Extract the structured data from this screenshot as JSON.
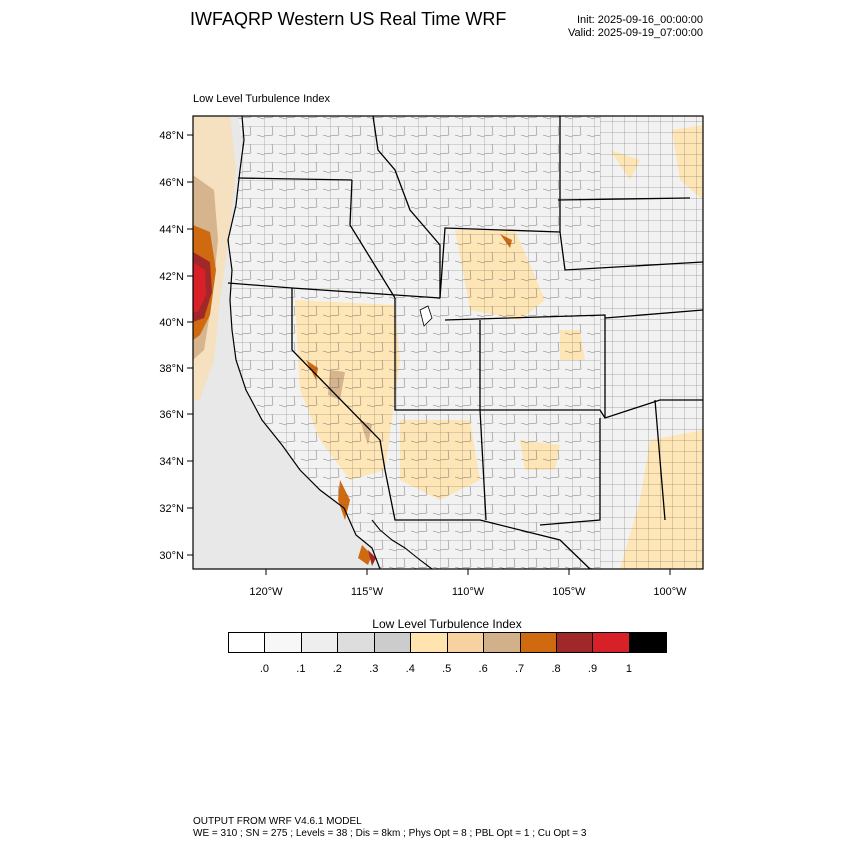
{
  "header": {
    "title": "IWFAQRP Western US Real Time WRF",
    "init": "Init: 2025-09-16_00:00:00",
    "valid": "Valid: 2025-09-19_07:00:00"
  },
  "map": {
    "plot_title": "Low Level Turbulence Index",
    "lat_labels": [
      "48°N",
      "46°N",
      "44°N",
      "42°N",
      "40°N",
      "38°N",
      "36°N",
      "34°N",
      "32°N",
      "30°N"
    ],
    "lon_labels": [
      "120°W",
      "115°W",
      "110°W",
      "105°W",
      "100°W"
    ]
  },
  "colorbar": {
    "title": "Low Level Turbulence Index",
    "colors": [
      "#ffffff",
      "#f7f7f7",
      "#eeeeee",
      "#dddddd",
      "#cccccc",
      "#ffe4b0",
      "#f5d2a0",
      "#d2b08a",
      "#d06a10",
      "#a02828",
      "#d82028",
      "#000000"
    ],
    "labels": [
      ".0",
      ".1",
      ".2",
      ".3",
      ".4",
      ".5",
      ".6",
      ".7",
      ".8",
      ".9",
      "1"
    ]
  },
  "footer": {
    "line1": "OUTPUT FROM WRF V4.6.1 MODEL",
    "line2": "WE = 310 ; SN = 275 ; Levels = 38 ; Dis = 8km ; Phys Opt = 8 ; PBL Opt = 1 ; Cu Opt = 3"
  }
}
